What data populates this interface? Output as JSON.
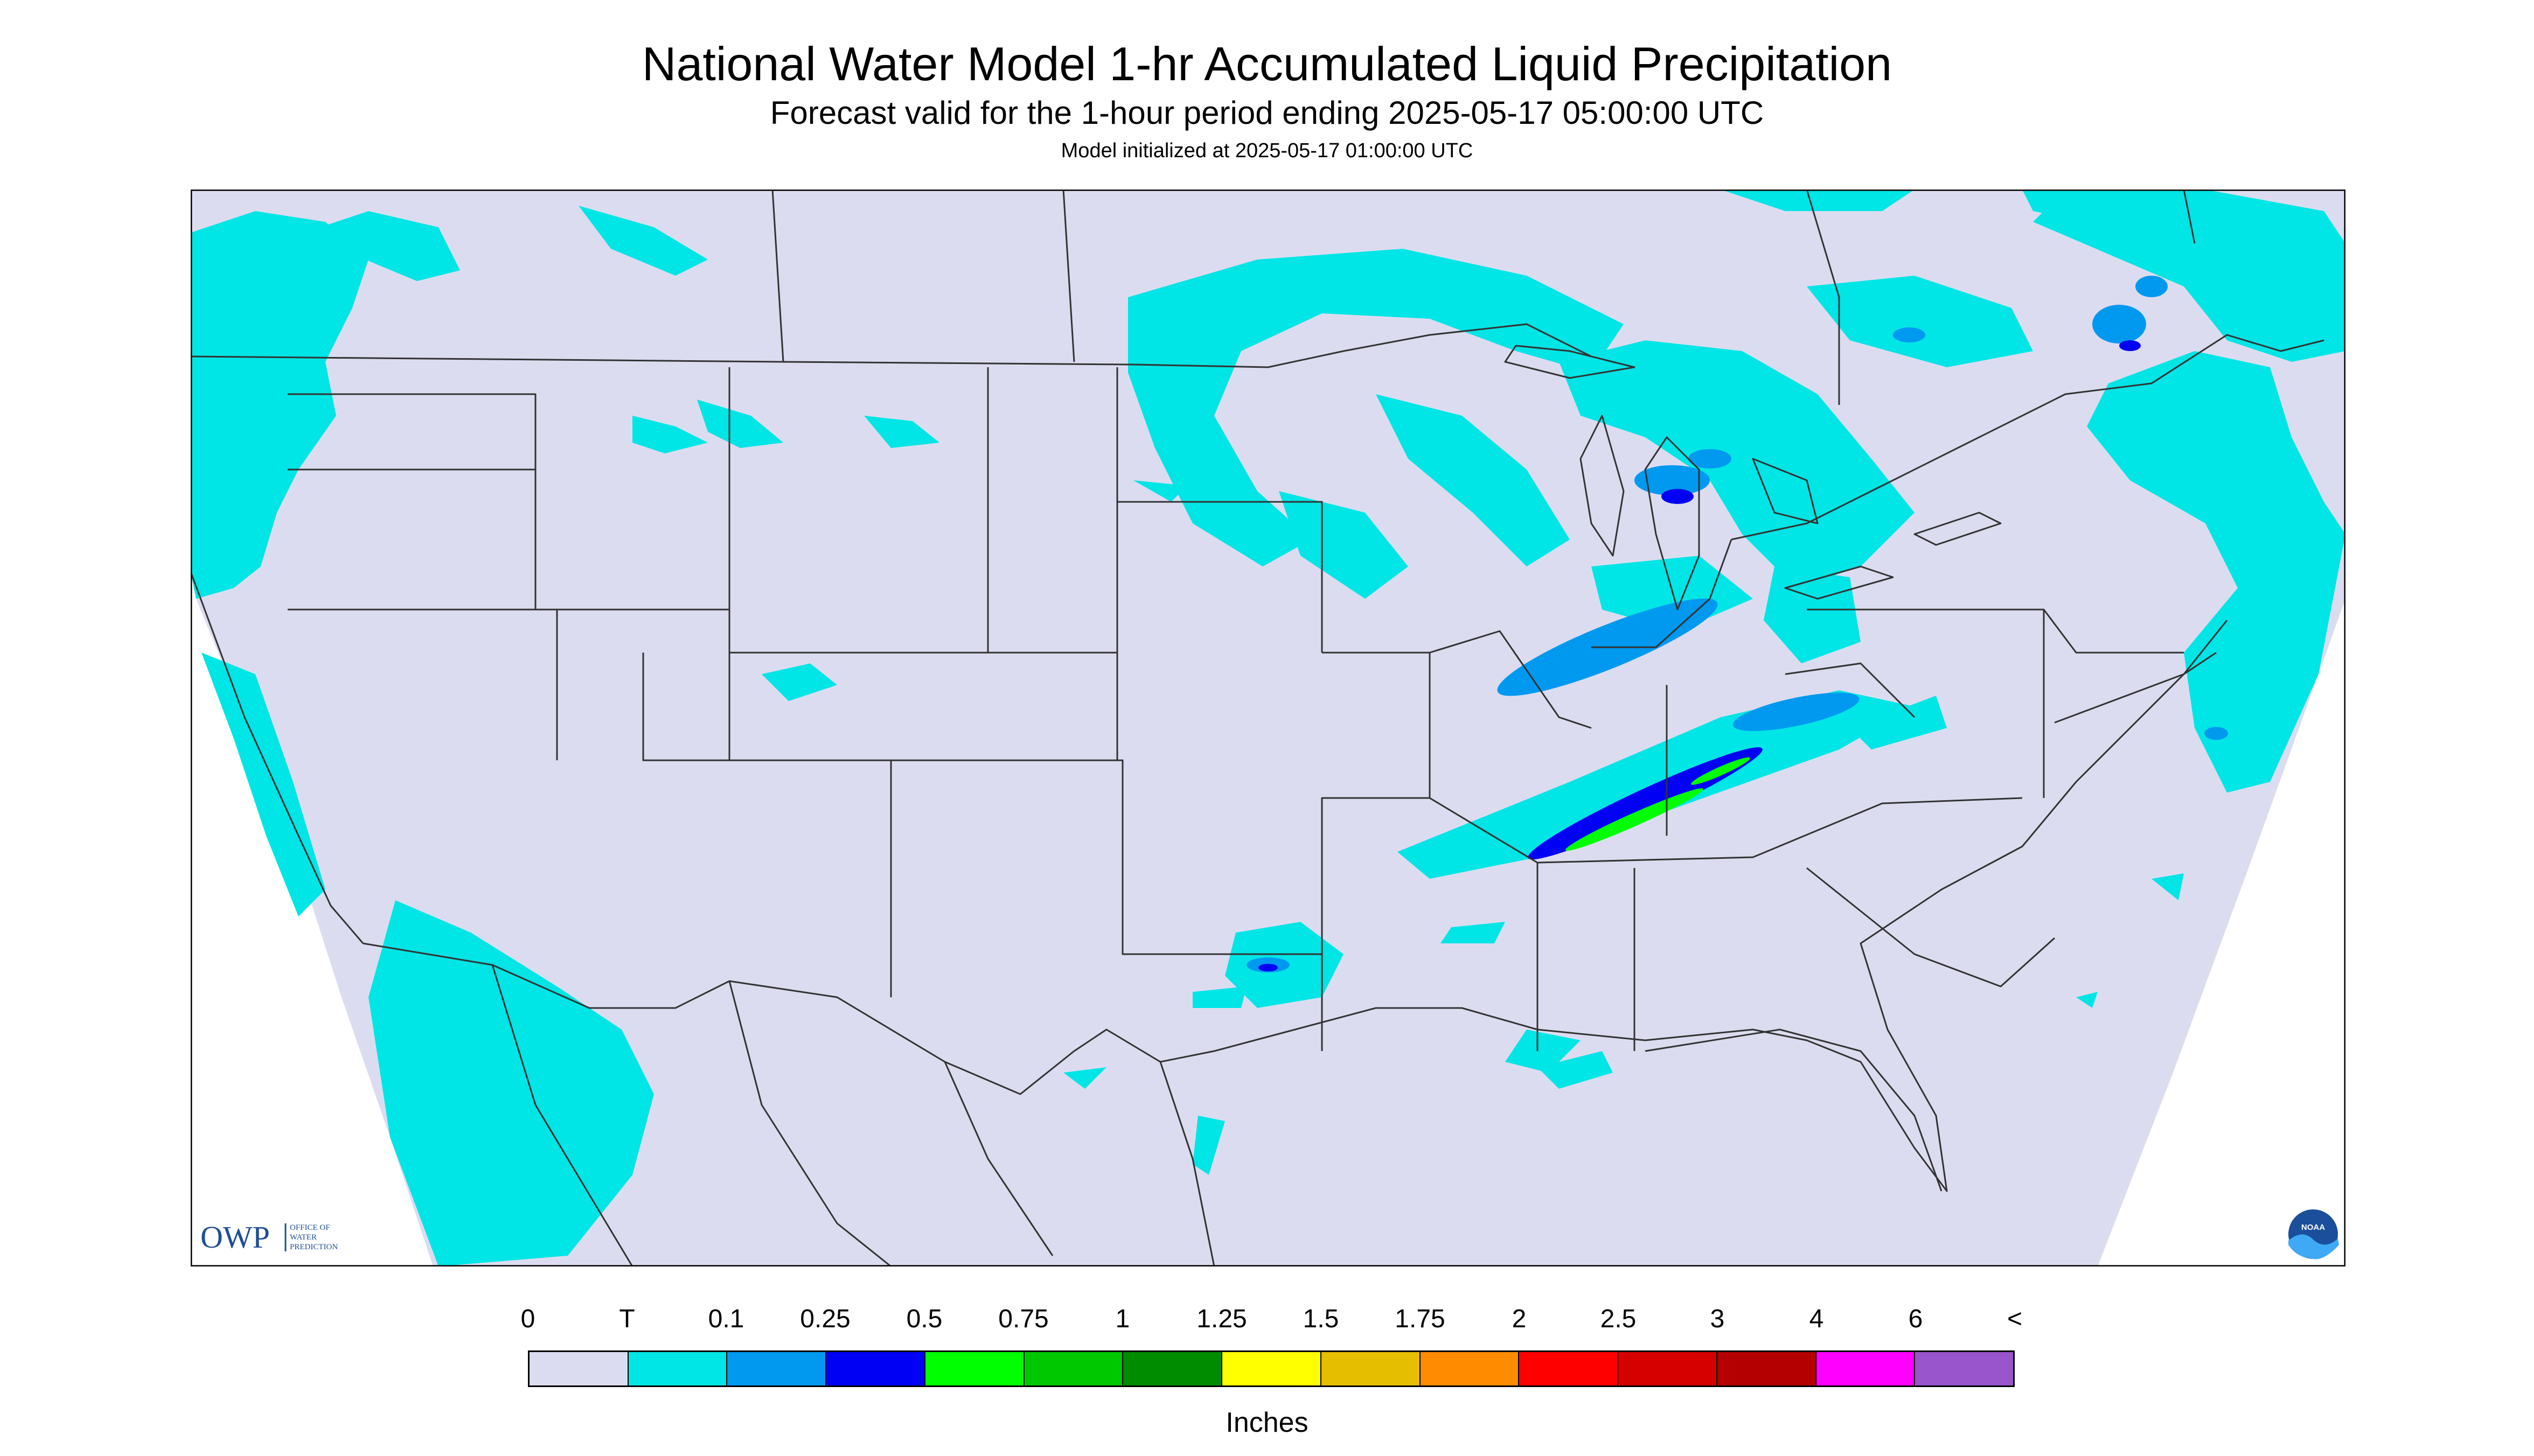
{
  "title": "National Water Model 1-hr Accumulated Liquid Precipitation",
  "subtitle": "Forecast valid for the 1-hour period ending 2025-05-17 05:00:00 UTC",
  "init_line": "Model initialized at 2025-05-17 01:00:00 UTC",
  "logos": {
    "owp_text": "OWP",
    "owp_sub": [
      "OFFICE OF",
      "WATER",
      "PREDICTION"
    ],
    "noaa_text": "NOAA"
  },
  "legend": {
    "labels": [
      "0",
      "T",
      "0.1",
      "0.25",
      "0.5",
      "0.75",
      "1",
      "1.25",
      "1.5",
      "1.75",
      "2",
      "2.5",
      "3",
      "4",
      "6",
      "<"
    ],
    "colors": [
      "#DCDCF0",
      "#00E5E5",
      "#0099F0",
      "#0000F5",
      "#00FF00",
      "#00C800",
      "#008C00",
      "#FFFF00",
      "#E6BE00",
      "#FF8C00",
      "#FF0000",
      "#D70000",
      "#B40000",
      "#FF00FF",
      "#9955CC"
    ],
    "units": "Inches"
  },
  "colors": {
    "map_background": "#DCDCF0",
    "trace": "#00E5E5",
    "light": "#0099F0",
    "moderate": "#0000F5",
    "heavy": "#00FF00",
    "boundary": "#333333"
  },
  "icons": [
    "owp-logo",
    "noaa-logo"
  ]
}
